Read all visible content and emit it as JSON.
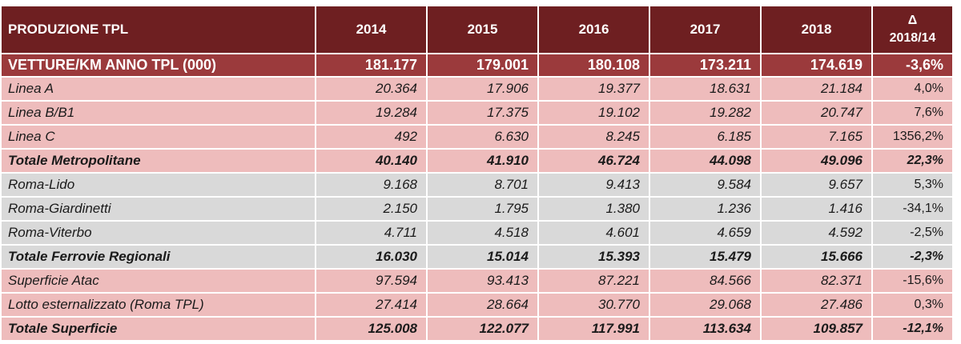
{
  "table": {
    "header": {
      "label": "PRODUZIONE TPL",
      "years": [
        "2014",
        "2015",
        "2016",
        "2017",
        "2018"
      ],
      "delta_symbol": "Δ",
      "delta_period": "2018/14"
    },
    "rows": [
      {
        "label": "VETTURE/KM ANNO TPL (000)",
        "values": [
          "181.177",
          "179.001",
          "180.108",
          "173.211",
          "174.619"
        ],
        "delta": "-3,6%"
      },
      {
        "label": "Linea A",
        "values": [
          "20.364",
          "17.906",
          "19.377",
          "18.631",
          "21.184"
        ],
        "delta": "4,0%"
      },
      {
        "label": "Linea B/B1",
        "values": [
          "19.284",
          "17.375",
          "19.102",
          "19.282",
          "20.747"
        ],
        "delta": "7,6%"
      },
      {
        "label": "Linea C",
        "values": [
          "492",
          "6.630",
          "8.245",
          "6.185",
          "7.165"
        ],
        "delta": "1356,2%"
      },
      {
        "label": "Totale Metropolitane",
        "values": [
          "40.140",
          "41.910",
          "46.724",
          "44.098",
          "49.096"
        ],
        "delta": "22,3%"
      },
      {
        "label": "Roma-Lido",
        "values": [
          "9.168",
          "8.701",
          "9.413",
          "9.584",
          "9.657"
        ],
        "delta": "5,3%"
      },
      {
        "label": "Roma-Giardinetti",
        "values": [
          "2.150",
          "1.795",
          "1.380",
          "1.236",
          "1.416"
        ],
        "delta": "-34,1%"
      },
      {
        "label": "Roma-Viterbo",
        "values": [
          "4.711",
          "4.518",
          "4.601",
          "4.659",
          "4.592"
        ],
        "delta": "-2,5%"
      },
      {
        "label": "Totale Ferrovie Regionali",
        "values": [
          "16.030",
          "15.014",
          "15.393",
          "15.479",
          "15.666"
        ],
        "delta": "-2,3%"
      },
      {
        "label": "Superficie Atac",
        "values": [
          "97.594",
          "93.413",
          "87.221",
          "84.566",
          "82.371"
        ],
        "delta": "-15,6%"
      },
      {
        "label": "Lotto esternalizzato (Roma TPL)",
        "values": [
          "27.414",
          "28.664",
          "30.770",
          "29.068",
          "27.486"
        ],
        "delta": "0,3%"
      },
      {
        "label": "Totale Superficie",
        "values": [
          "125.008",
          "122.077",
          "117.991",
          "113.634",
          "109.857"
        ],
        "delta": "-12,1%"
      }
    ]
  },
  "colors": {
    "header_bg": "#6e1f21",
    "main_row_bg": "#9b3a3c",
    "metro_bg": "#eebcbc",
    "rail_bg": "#d9d9d9",
    "surface_bg": "#eebcbc"
  }
}
